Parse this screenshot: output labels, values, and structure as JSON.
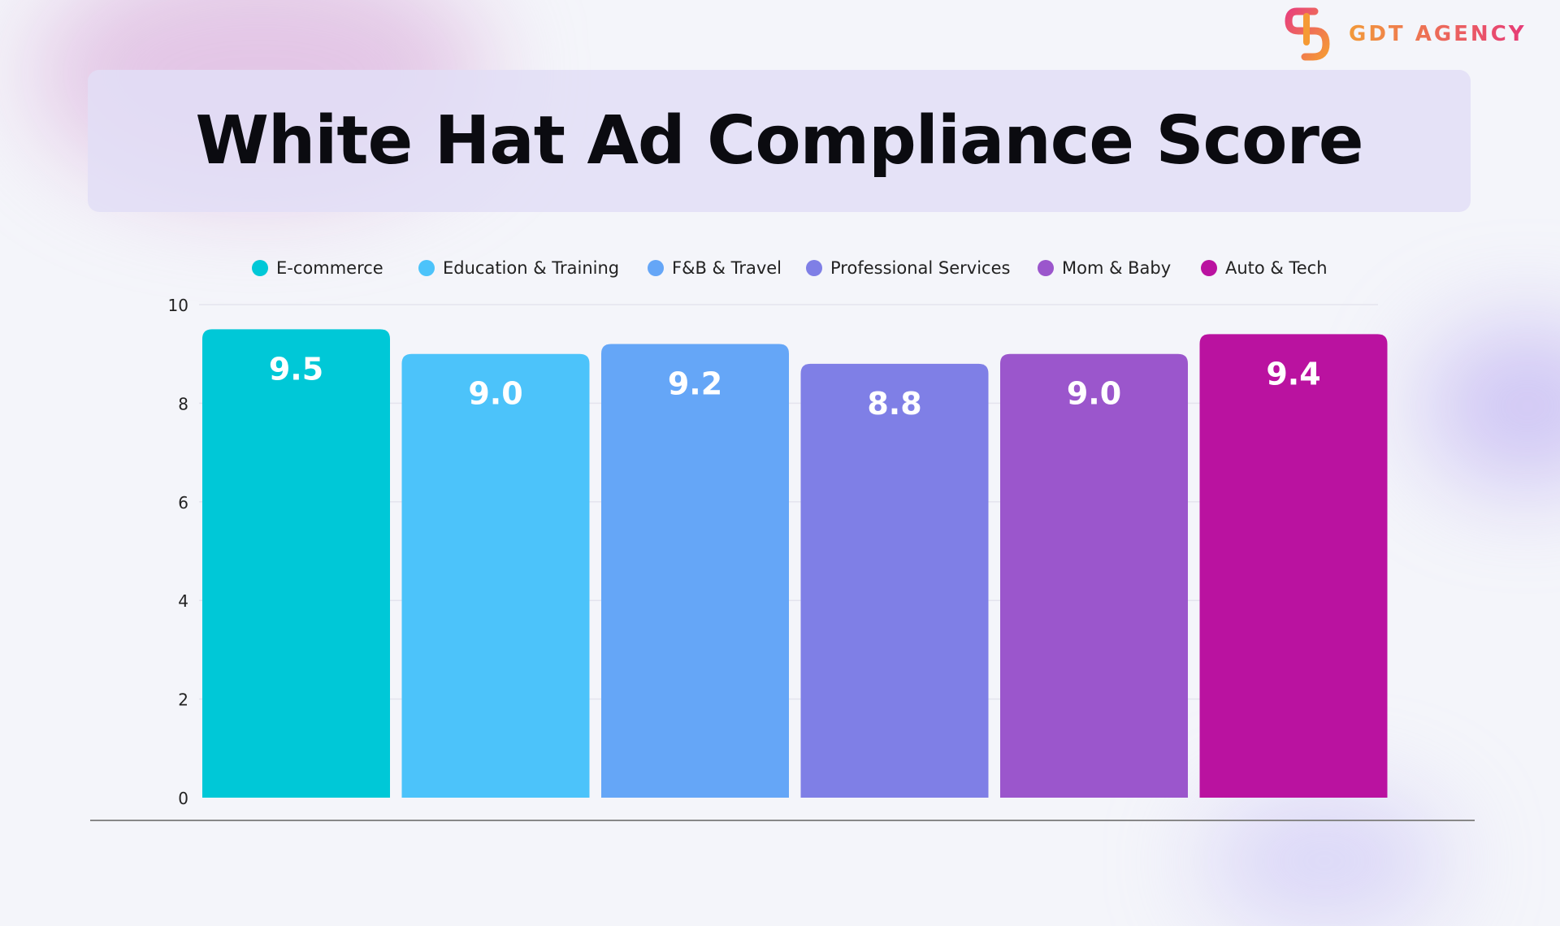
{
  "brand": {
    "logo_text": "GDT AGENCY"
  },
  "chart_data": {
    "type": "bar",
    "title": "White Hat Ad Compliance Score",
    "categories": [
      "E-commerce",
      "Education & Training",
      "F&B & Travel",
      "Professional Services",
      "Mom & Baby",
      "Auto & Tech"
    ],
    "values": [
      9.5,
      9.0,
      9.2,
      8.8,
      9.0,
      9.4
    ],
    "value_labels": [
      "9.5",
      "9.0",
      "9.2",
      "8.8",
      "9.0",
      "9.4"
    ],
    "colors": [
      "#00C8D7",
      "#4CC3FA",
      "#65A6F7",
      "#7F7FE6",
      "#9B56CC",
      "#BA12A0"
    ],
    "ylim": [
      0,
      10
    ],
    "yticks": [
      "0",
      "2",
      "4",
      "6",
      "8",
      "10"
    ],
    "grid": true,
    "legend": "top",
    "xlabel": "",
    "ylabel": ""
  }
}
